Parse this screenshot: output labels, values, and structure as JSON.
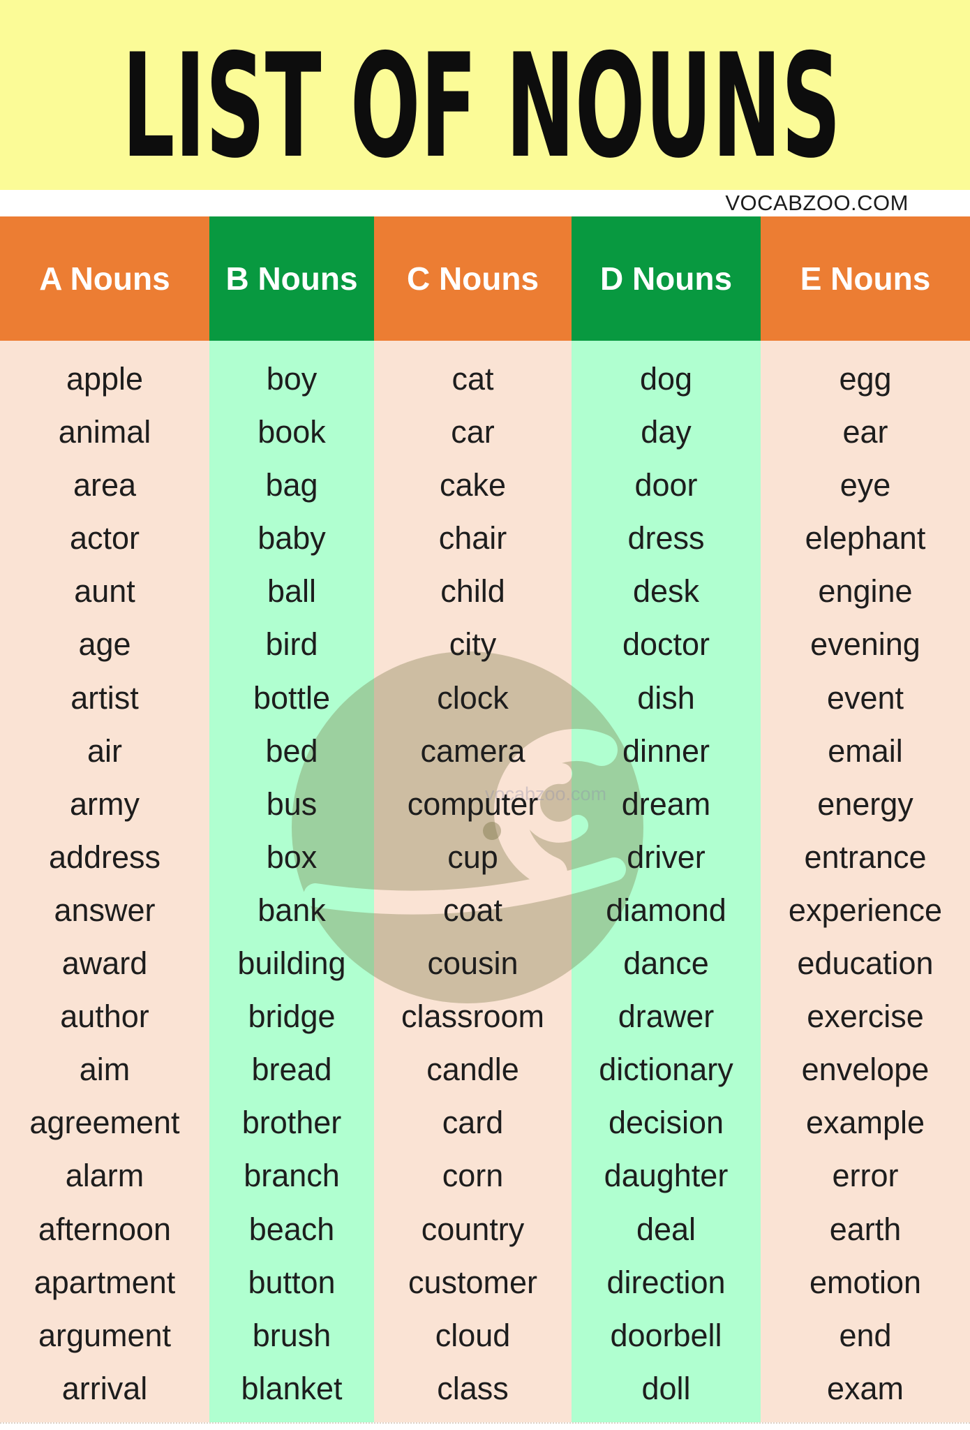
{
  "page": {
    "title": "LIST OF NOUNS",
    "site": "VOCABZOO.COM",
    "watermark_text": "vocabzoo.com"
  },
  "colors": {
    "title_band_yellow": "#FBFB97",
    "header_orange": "#EC7D33",
    "header_green": "#089940",
    "body_peach": "#FAE3D4",
    "body_mint": "#B0FFD0",
    "word_text": "#1D1D1D",
    "header_text": "#FFFFFF",
    "title_text": "#0D0D0D"
  },
  "columns": [
    {
      "label": "A Nouns",
      "header_color": "orange",
      "body_color": "peach",
      "words": [
        "apple",
        "animal",
        "area",
        "actor",
        "aunt",
        "age",
        "artist",
        "air",
        "army",
        "address",
        "answer",
        "award",
        "author",
        "aim",
        "agreement",
        "alarm",
        "afternoon",
        "apartment",
        "argument",
        "arrival"
      ]
    },
    {
      "label": "B Nouns",
      "header_color": "green",
      "body_color": "mint",
      "words": [
        "boy",
        "book",
        "bag",
        "baby",
        "ball",
        "bird",
        "bottle",
        "bed",
        "bus",
        "box",
        "bank",
        "building",
        "bridge",
        "bread",
        "brother",
        "branch",
        "beach",
        "button",
        "brush",
        "blanket"
      ]
    },
    {
      "label": "C Nouns",
      "header_color": "orange",
      "body_color": "peach",
      "words": [
        "cat",
        "car",
        "cake",
        "chair",
        "child",
        "city",
        "clock",
        "camera",
        "computer",
        "cup",
        "coat",
        "cousin",
        "classroom",
        "candle",
        "card",
        "corn",
        "country",
        "customer",
        "cloud",
        "class"
      ]
    },
    {
      "label": "D Nouns",
      "header_color": "green",
      "body_color": "mint",
      "words": [
        "dog",
        "day",
        "door",
        "dress",
        "desk",
        "doctor",
        "dish",
        "dinner",
        "dream",
        "driver",
        "diamond",
        "dance",
        "drawer",
        "dictionary",
        "decision",
        "daughter",
        "deal",
        "direction",
        "doorbell",
        "doll"
      ]
    },
    {
      "label": "E Nouns",
      "header_color": "orange",
      "body_color": "peach",
      "words": [
        "egg",
        "ear",
        "eye",
        "elephant",
        "engine",
        "evening",
        "event",
        "email",
        "energy",
        "entrance",
        "experience",
        "education",
        "exercise",
        "envelope",
        "example",
        "error",
        "earth",
        "emotion",
        "end",
        "exam"
      ]
    }
  ]
}
